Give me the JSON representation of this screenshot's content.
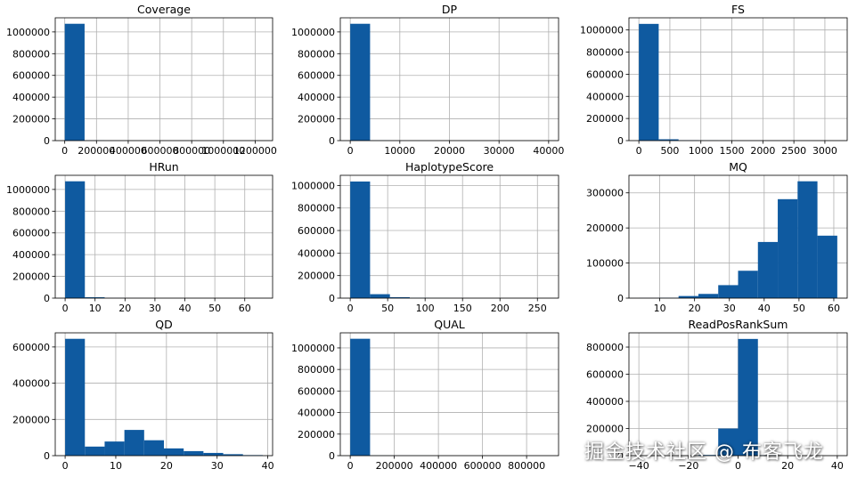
{
  "figure": {
    "watermark": "掘金技术社区 @ 布客飞龙",
    "bar_color": "#0f5aa0",
    "grid_color": "#b0b0b0"
  },
  "chart_data": [
    {
      "type": "bar",
      "title": "Coverage",
      "bin_edges": [
        0,
        125000,
        250000,
        375000,
        500000,
        625000,
        750000,
        875000,
        1000000,
        1125000,
        1250000
      ],
      "values": [
        1075000,
        1500,
        300,
        150,
        80,
        50,
        30,
        20,
        10,
        10
      ],
      "xlim": [
        -60000,
        1310000
      ],
      "ylim": [
        0,
        1130000
      ],
      "xticks": [
        0,
        200000,
        400000,
        600000,
        800000,
        1000000,
        1200000
      ],
      "xtick_labels": [
        "0",
        "200000",
        "400000",
        "600000",
        "800000",
        "1000000",
        "1200000"
      ],
      "yticks": [
        0,
        200000,
        400000,
        600000,
        800000,
        1000000
      ],
      "ytick_labels": [
        "0",
        "200000",
        "400000",
        "600000",
        "800000",
        "1000000"
      ],
      "xlabel": "",
      "ylabel": ""
    },
    {
      "type": "bar",
      "title": "DP",
      "bin_edges": [
        0,
        4000,
        8000,
        12000,
        16000,
        20000,
        24000,
        28000,
        32000,
        36000,
        40000
      ],
      "values": [
        1075000,
        1500,
        300,
        150,
        80,
        50,
        30,
        20,
        10,
        10
      ],
      "xlim": [
        -2000,
        42000
      ],
      "ylim": [
        0,
        1130000
      ],
      "xticks": [
        0,
        10000,
        20000,
        30000,
        40000
      ],
      "xtick_labels": [
        "0",
        "10000",
        "20000",
        "30000",
        "40000"
      ],
      "yticks": [
        0,
        200000,
        400000,
        600000,
        800000,
        1000000
      ],
      "ytick_labels": [
        "0",
        "200000",
        "400000",
        "600000",
        "800000",
        "1000000"
      ],
      "xlabel": "",
      "ylabel": ""
    },
    {
      "type": "bar",
      "title": "FS",
      "bin_edges": [
        0,
        320,
        640,
        960,
        1280,
        1600,
        1920,
        2240,
        2560,
        2880,
        3200
      ],
      "values": [
        1055000,
        12000,
        3000,
        1000,
        500,
        300,
        200,
        100,
        50,
        50
      ],
      "xlim": [
        -160,
        3360
      ],
      "ylim": [
        0,
        1110000
      ],
      "xticks": [
        0,
        500,
        1000,
        1500,
        2000,
        2500,
        3000
      ],
      "xtick_labels": [
        "0",
        "500",
        "1000",
        "1500",
        "2000",
        "2500",
        "3000"
      ],
      "yticks": [
        0,
        200000,
        400000,
        600000,
        800000,
        1000000
      ],
      "ytick_labels": [
        "0",
        "200000",
        "400000",
        "600000",
        "800000",
        "1000000"
      ],
      "xlabel": "",
      "ylabel": ""
    },
    {
      "type": "bar",
      "title": "HRun",
      "bin_edges": [
        0,
        6.6,
        13.2,
        19.8,
        26.4,
        33,
        39.6,
        46.2,
        52.8,
        59.4,
        66
      ],
      "values": [
        1075000,
        8000,
        1000,
        300,
        100,
        50,
        30,
        20,
        10,
        10
      ],
      "xlim": [
        -3.3,
        69.3
      ],
      "ylim": [
        0,
        1130000
      ],
      "xticks": [
        0,
        10,
        20,
        30,
        40,
        50,
        60
      ],
      "xtick_labels": [
        "0",
        "10",
        "20",
        "30",
        "40",
        "50",
        "60"
      ],
      "yticks": [
        0,
        200000,
        400000,
        600000,
        800000,
        1000000
      ],
      "ytick_labels": [
        "0",
        "200000",
        "400000",
        "600000",
        "800000",
        "1000000"
      ],
      "xlabel": "",
      "ylabel": ""
    },
    {
      "type": "bar",
      "title": "HaplotypeScore",
      "bin_edges": [
        0,
        26.5,
        53,
        79.5,
        106,
        132.5,
        159,
        185.5,
        212,
        238.5,
        265
      ],
      "values": [
        1035000,
        35000,
        8000,
        2000,
        600,
        200,
        100,
        50,
        20,
        10
      ],
      "xlim": [
        -13.25,
        278.25
      ],
      "ylim": [
        0,
        1090000
      ],
      "xticks": [
        0,
        50,
        100,
        150,
        200,
        250
      ],
      "xtick_labels": [
        "0",
        "50",
        "100",
        "150",
        "200",
        "250"
      ],
      "yticks": [
        0,
        200000,
        400000,
        600000,
        800000,
        1000000
      ],
      "ytick_labels": [
        "0",
        "200000",
        "400000",
        "600000",
        "800000",
        "1000000"
      ],
      "xlabel": "",
      "ylabel": ""
    },
    {
      "type": "bar",
      "title": "MQ",
      "bin_edges": [
        4,
        9.7,
        15.4,
        21.1,
        26.8,
        32.5,
        38.2,
        43.9,
        49.6,
        55.3,
        61
      ],
      "values": [
        300,
        800,
        6000,
        12000,
        37000,
        78000,
        160000,
        282000,
        333000,
        178000
      ],
      "xlim": [
        1.15,
        63.85
      ],
      "ylim": [
        0,
        350000
      ],
      "xticks": [
        10,
        20,
        30,
        40,
        50,
        60
      ],
      "xtick_labels": [
        "10",
        "20",
        "30",
        "40",
        "50",
        "60"
      ],
      "yticks": [
        0,
        100000,
        200000,
        300000
      ],
      "ytick_labels": [
        "0",
        "100000",
        "200000",
        "300000"
      ],
      "xlabel": "",
      "ylabel": ""
    },
    {
      "type": "bar",
      "title": "QD",
      "bin_edges": [
        0,
        3.9,
        7.8,
        11.7,
        15.6,
        19.5,
        23.4,
        27.3,
        31.2,
        35.1,
        39
      ],
      "values": [
        645000,
        50000,
        78000,
        142000,
        85000,
        40000,
        25000,
        15000,
        8000,
        3000
      ],
      "xlim": [
        -1.95,
        40.95
      ],
      "ylim": [
        0,
        678000
      ],
      "xticks": [
        0,
        10,
        20,
        30,
        40
      ],
      "xtick_labels": [
        "0",
        "10",
        "20",
        "30",
        "40"
      ],
      "yticks": [
        0,
        200000,
        400000,
        600000
      ],
      "ytick_labels": [
        "0",
        "200000",
        "400000",
        "600000"
      ],
      "xlabel": "",
      "ylabel": ""
    },
    {
      "type": "bar",
      "title": "QUAL",
      "bin_edges": [
        0,
        90000,
        180000,
        270000,
        360000,
        450000,
        540000,
        630000,
        720000,
        810000,
        900000
      ],
      "values": [
        1085000,
        1000,
        300,
        150,
        80,
        50,
        30,
        20,
        10,
        10
      ],
      "xlim": [
        -45000,
        945000
      ],
      "ylim": [
        0,
        1140000
      ],
      "xticks": [
        0,
        200000,
        400000,
        600000,
        800000
      ],
      "xtick_labels": [
        "0",
        "200000",
        "400000",
        "600000",
        "800000"
      ],
      "yticks": [
        0,
        200000,
        400000,
        600000,
        800000,
        1000000
      ],
      "ytick_labels": [
        "0",
        "200000",
        "400000",
        "600000",
        "800000",
        "1000000"
      ],
      "xlabel": "",
      "ylabel": ""
    },
    {
      "type": "bar",
      "title": "ReadPosRankSum",
      "bin_edges": [
        -40,
        -32,
        -24,
        -16,
        -8,
        0,
        8,
        16,
        24,
        32,
        40
      ],
      "values": [
        10,
        30,
        200,
        5000,
        200000,
        860000,
        3000,
        100,
        20,
        10
      ],
      "xlim": [
        -44,
        44
      ],
      "ylim": [
        0,
        905000
      ],
      "xticks": [
        -40,
        -20,
        0,
        20,
        40
      ],
      "xtick_labels": [
        "−40",
        "−20",
        "0",
        "20",
        "40"
      ],
      "yticks": [
        0,
        200000,
        400000,
        600000,
        800000
      ],
      "ytick_labels": [
        "0",
        "200000",
        "400000",
        "600000",
        "800000"
      ],
      "xlabel": "",
      "ylabel": ""
    }
  ]
}
